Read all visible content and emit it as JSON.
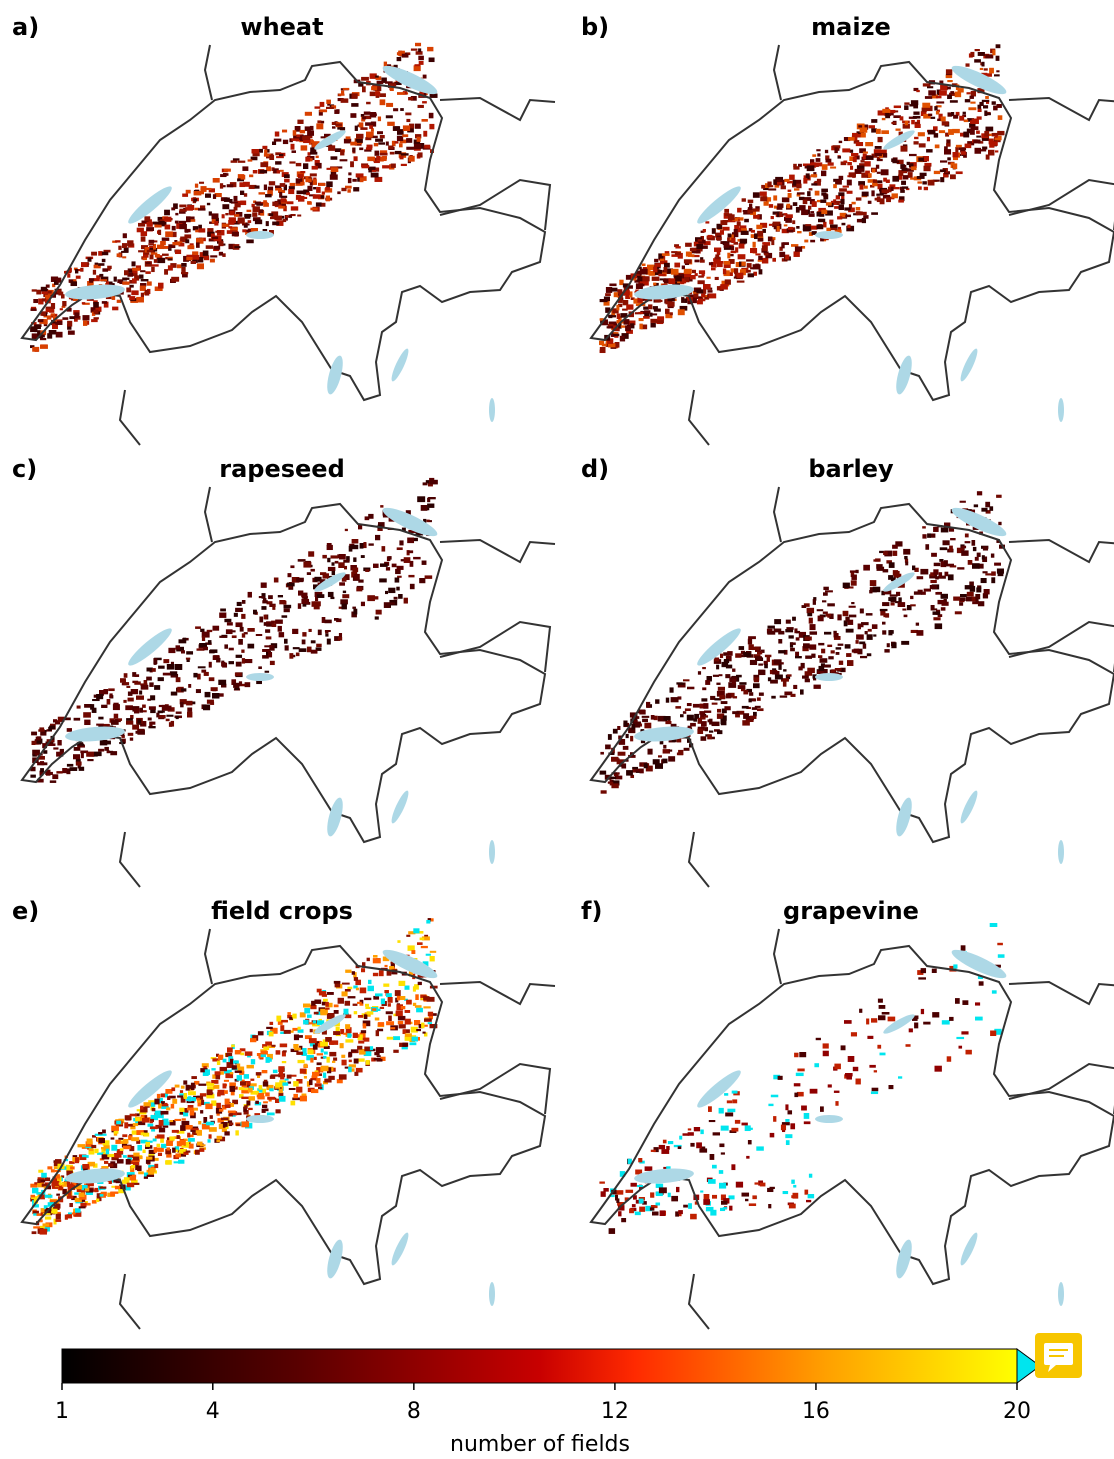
{
  "panels": [
    {
      "label": "a)",
      "title": "wheat"
    },
    {
      "label": "b)",
      "title": "maize"
    },
    {
      "label": "c)",
      "title": "rapeseed"
    },
    {
      "label": "d)",
      "title": "barley"
    },
    {
      "label": "e)",
      "title": "field crops"
    },
    {
      "label": "f)",
      "title": "grapevine"
    }
  ],
  "colorbar": {
    "lim": [
      1,
      20
    ],
    "ticks": [
      1,
      4,
      8,
      12,
      16,
      20
    ],
    "label": "number of fields"
  }
}
